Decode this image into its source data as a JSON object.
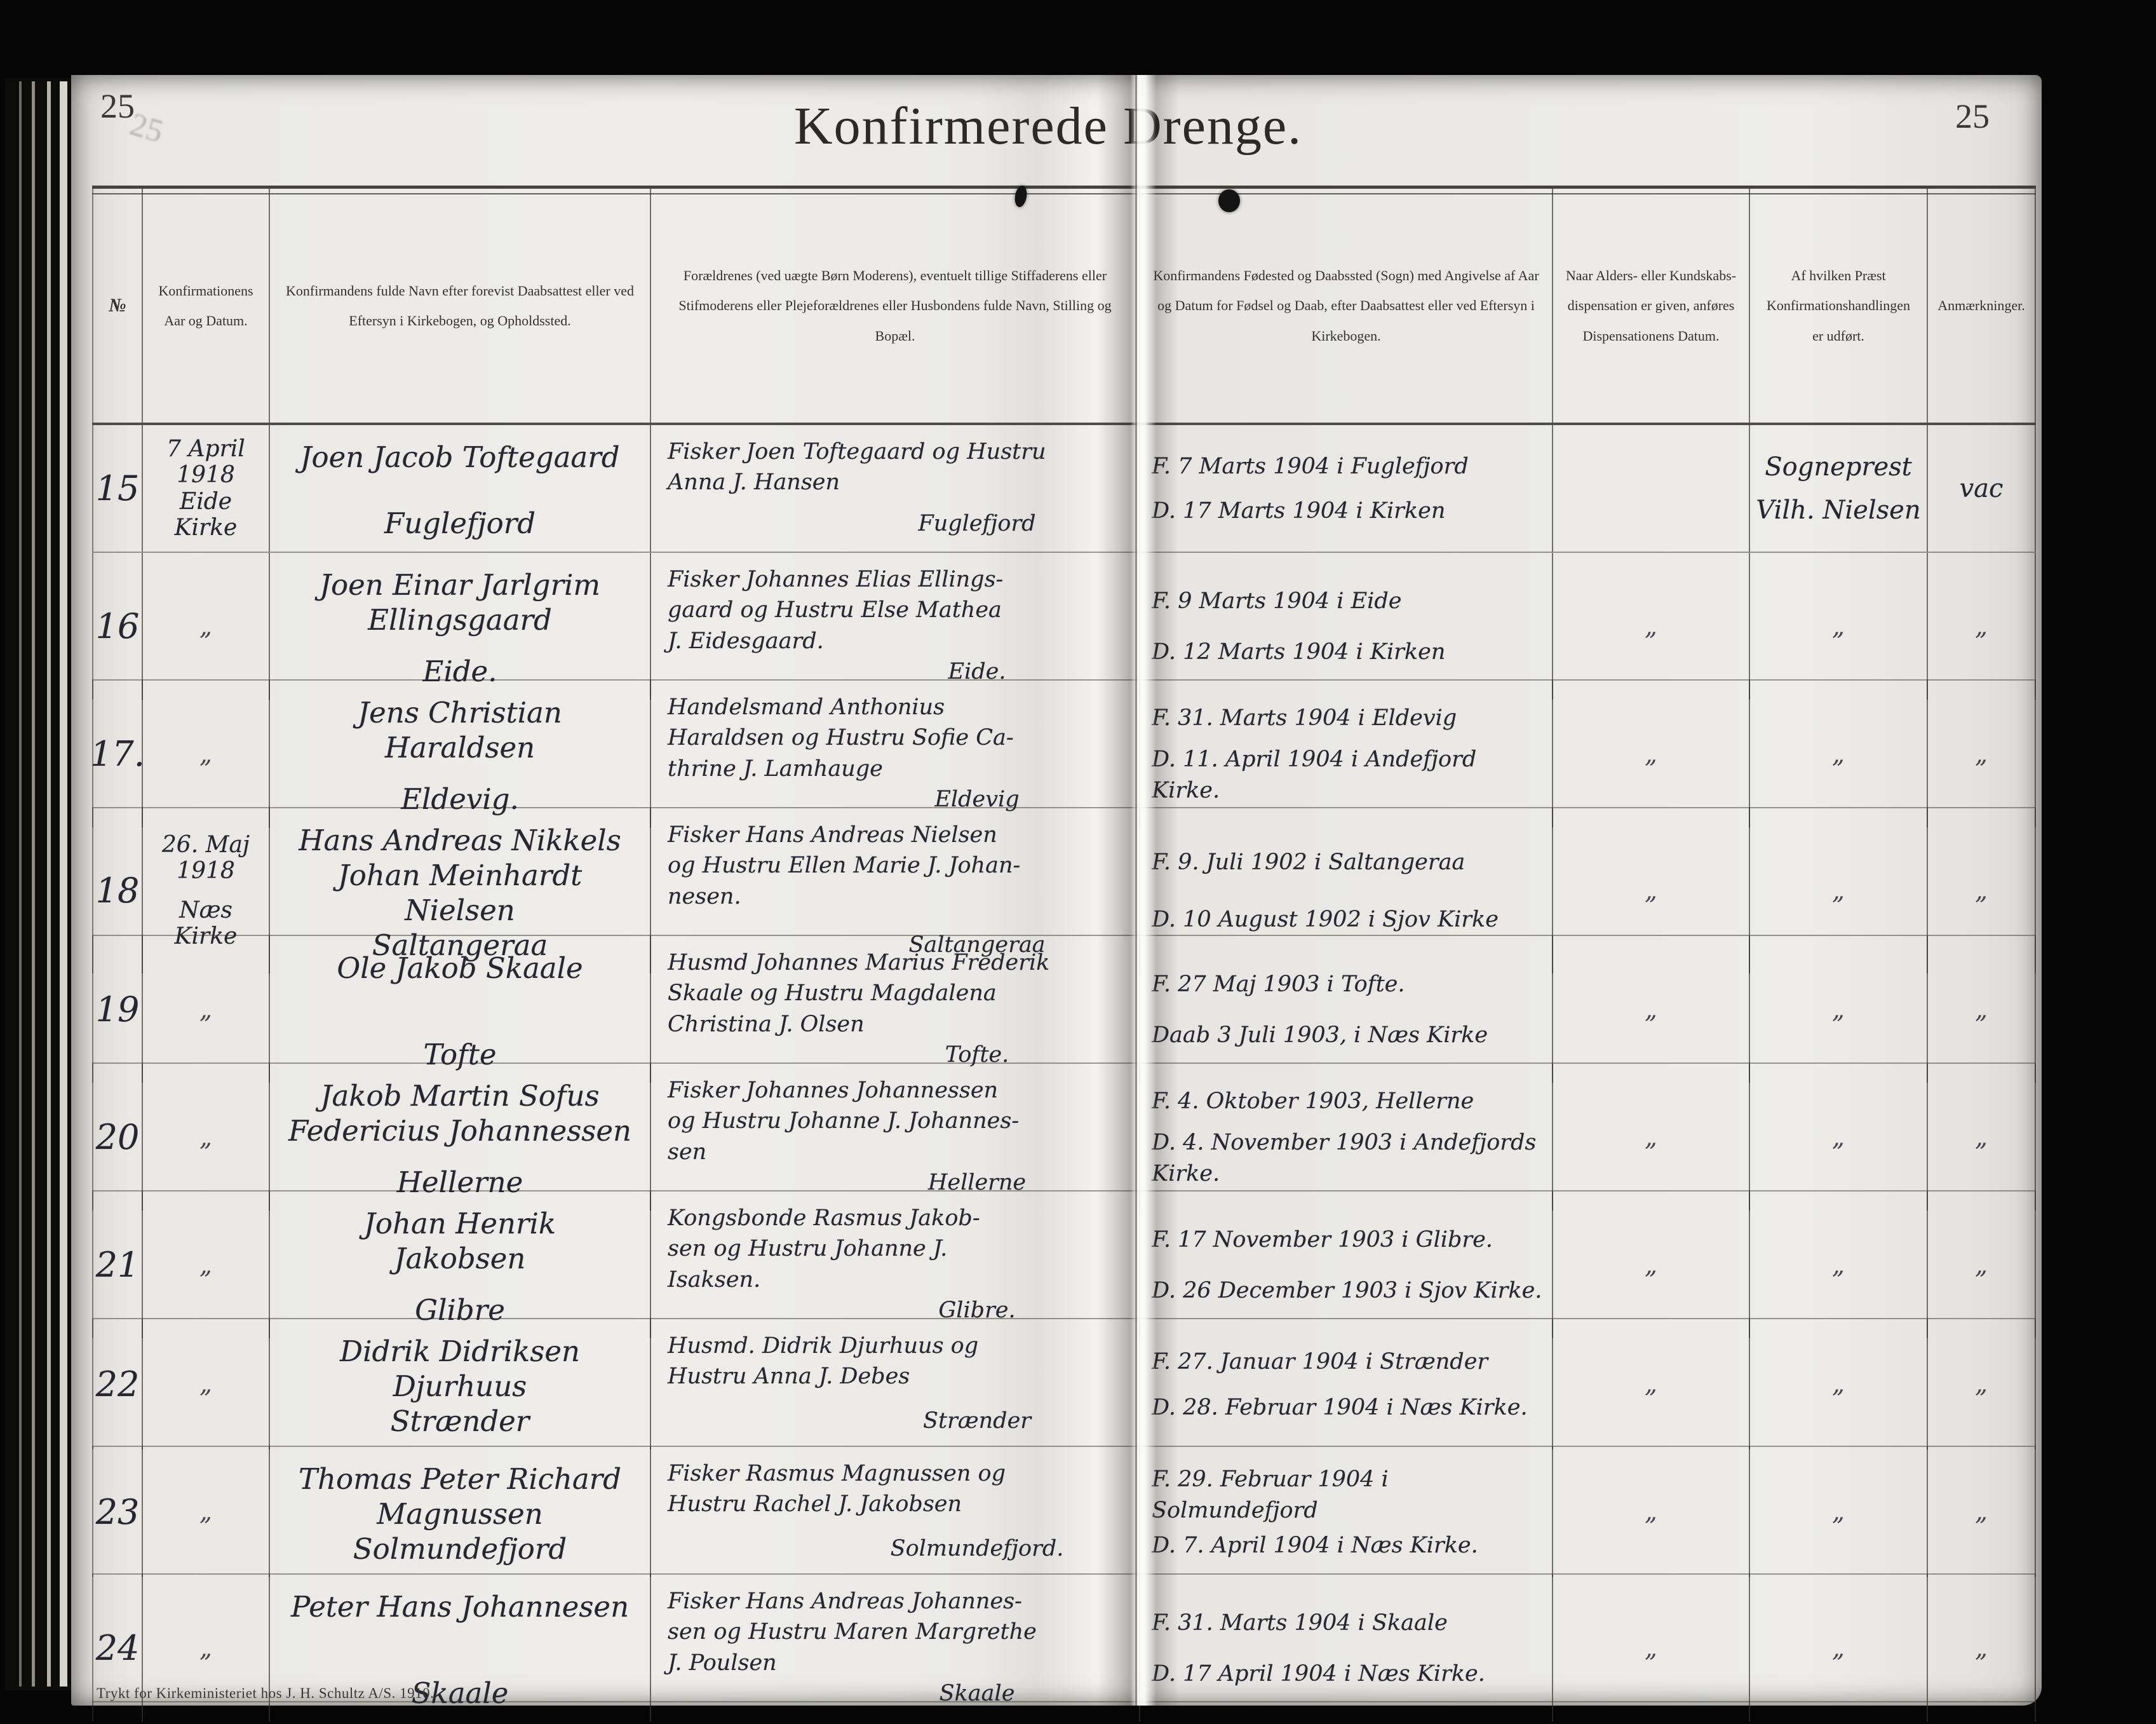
{
  "page": {
    "title": "Konfirmerede Drenge.",
    "page_number_left": "25",
    "page_number_right": "25",
    "footer": "Trykt for Kirkeministeriet hos J. H. Schultz A/S. 1910."
  },
  "table": {
    "headers": {
      "no": "№",
      "date": "Konfirmationens Aar og Datum.",
      "name": "Konfirmandens fulde Navn efter forevist Daabsattest eller ved Eftersyn i Kirke­bogen, og Opholdssted.",
      "parents": "Forældrenes (ved uægte Børn Moderens), eventuelt til­lige Stiffaderens eller Stifmoderens eller Plejefor­ældrenes eller Husbondens fulde Navn, Stilling og Bopæl.",
      "birth": "Konfirmandens Fødested og Daabssted (Sogn) med Angivelse af Aar og Datum for Fødsel og Daab, efter Daabsattest eller ved Eftersyn i Kirkebogen.",
      "dispensation": "Naar Alders- eller Kundskabs­dispensation er given, anføres Dispensationens Datum.",
      "priest": "Af hvilken Præst Konfirmationshandlingen er udført.",
      "remarks": "Anmærkninger."
    },
    "rows": [
      {
        "no": "15",
        "date": [
          "7 April 1918",
          "Eide Kirke"
        ],
        "name": [
          "Joen Jacob Toftegaard"
        ],
        "name_residence": "Fuglefjord",
        "parents": [
          "Fisker Joen Toftegaard og Hustru",
          "Anna J. Hansen"
        ],
        "parents_residence": "Fuglefjord",
        "birth": [
          "F. 7 Marts 1904 i Fuglefjord",
          "D. 17 Marts 1904 i Kirken"
        ],
        "dispensation": "",
        "priest": [
          "Sogneprest",
          "Vilh. Nielsen"
        ],
        "remarks": "vac"
      },
      {
        "no": "16",
        "date": [
          "„"
        ],
        "name": [
          "Joen Einar Jarlgrim",
          "Ellingsgaard"
        ],
        "name_residence": "Eide.",
        "parents": [
          "Fisker Johannes Elias Ellings-",
          "gaard og Hustru Else Mathea",
          "J. Eidesgaard."
        ],
        "parents_residence": "Eide.",
        "birth": [
          "F. 9 Marts 1904 i Eide",
          "D. 12 Marts 1904 i Kirken"
        ],
        "dispensation": "„",
        "priest": [
          "„"
        ],
        "remarks": "„"
      },
      {
        "no": "17.",
        "date": [
          "„"
        ],
        "name": [
          "Jens Christian",
          "Haraldsen"
        ],
        "name_residence": "Eldevig.",
        "parents": [
          "Handelsmand Anthonius",
          "Haraldsen og Hustru Sofie Ca-",
          "thrine J. Lamhauge"
        ],
        "parents_residence": "Eldevig",
        "birth": [
          "F. 31. Marts 1904 i Eldevig",
          "D. 11. April 1904 i Andefjord Kirke."
        ],
        "dispensation": "„",
        "priest": [
          "„"
        ],
        "remarks": "„"
      },
      {
        "no": "18",
        "date": [
          "26. Maj 1918",
          "Næs Kirke"
        ],
        "name": [
          "Hans Andreas Nikkels",
          "Johan Meinhardt",
          "Nielsen"
        ],
        "name_residence": "Saltangeraa",
        "parents": [
          "Fisker Hans Andreas Nielsen",
          "og Hustru Ellen Marie J. Johan-",
          "nesen."
        ],
        "parents_residence": "Saltangeraa",
        "birth": [
          "F. 9. Juli 1902 i Saltangeraa",
          "D. 10 August 1902 i Sjov Kirke"
        ],
        "dispensation": "„",
        "priest": [
          "„"
        ],
        "remarks": "„"
      },
      {
        "no": "19",
        "date": [
          "„"
        ],
        "name": [
          "Ole Jakob Skaale"
        ],
        "name_residence": "Tofte",
        "parents": [
          "Husmd Johannes Marius Frederik",
          "Skaale og Hustru Magdalena",
          "Christina J. Olsen"
        ],
        "parents_residence": "Tofte.",
        "birth": [
          "F. 27 Maj 1903 i Tofte.",
          "Daab 3 Juli 1903, i Næs Kirke"
        ],
        "dispensation": "„",
        "priest": [
          "„"
        ],
        "remarks": "„"
      },
      {
        "no": "20",
        "date": [
          "„"
        ],
        "name": [
          "Jakob Martin Sofus",
          "Federicius Johannessen"
        ],
        "name_residence": "Hellerne",
        "parents": [
          "Fisker Johannes Johannessen",
          "og Hustru Johanne J. Johannes-",
          "sen"
        ],
        "parents_residence": "Hellerne",
        "birth": [
          "F. 4. Oktober 1903, Hellerne",
          "D. 4. November 1903 i Andefjords Kirke."
        ],
        "dispensation": "„",
        "priest": [
          "„"
        ],
        "remarks": "„"
      },
      {
        "no": "21",
        "date": [
          "„"
        ],
        "name": [
          "Johan Henrik",
          "Jakobsen"
        ],
        "name_residence": "Glibre",
        "parents": [
          "Kongsbonde Rasmus Jakob-",
          "sen og Hustru Johanne J.",
          "Isaksen."
        ],
        "parents_residence": "Glibre.",
        "birth": [
          "F. 17 November 1903 i Glibre.",
          "D. 26 December 1903 i Sjov Kirke."
        ],
        "dispensation": "„",
        "priest": [
          "„"
        ],
        "remarks": "„"
      },
      {
        "no": "22",
        "date": [
          "„"
        ],
        "name": [
          "Didrik Didriksen",
          "Djurhuus"
        ],
        "name_residence": "Strænder",
        "parents": [
          "Husmd. Didrik Djurhuus og",
          "Hustru Anna J. Debes"
        ],
        "parents_residence": "Strænder",
        "birth": [
          "F. 27. Januar 1904 i Strænder",
          "D. 28. Februar 1904 i Næs Kirke."
        ],
        "dispensation": "„",
        "priest": [
          "„"
        ],
        "remarks": "„"
      },
      {
        "no": "23",
        "date": [
          "„"
        ],
        "name": [
          "Thomas Peter Richard",
          "Magnussen"
        ],
        "name_residence": "Solmundefjord",
        "parents": [
          "Fisker Rasmus Magnussen og",
          "Hustru Rachel J. Jakobsen"
        ],
        "parents_residence": "Solmundefjord.",
        "birth": [
          "F. 29. Februar 1904 i Solmundefjord",
          "D. 7. April 1904 i Næs Kirke."
        ],
        "dispensation": "„",
        "priest": [
          "„"
        ],
        "remarks": "„"
      },
      {
        "no": "24",
        "date": [
          "„"
        ],
        "name": [
          "Peter Hans Johannesen"
        ],
        "name_residence": "Skaale",
        "parents": [
          "Fisker Hans Andreas Johannes-",
          "sen og Hustru Maren Margrethe",
          "J. Poulsen"
        ],
        "parents_residence": "Skaale",
        "birth": [
          "F. 31. Marts 1904 i Skaale",
          "D. 17 April 1904 i Næs Kirke."
        ],
        "dispensation": "„",
        "priest": [
          "„"
        ],
        "remarks": "„"
      }
    ]
  }
}
